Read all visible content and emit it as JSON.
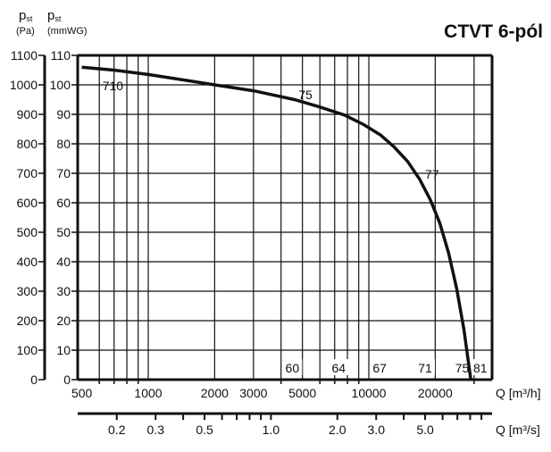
{
  "chart_data": {
    "type": "line",
    "title": "CTVT 6-pól",
    "y_left_label": {
      "main": "p",
      "sub": "st",
      "unit": "(Pa)"
    },
    "y_right_label": {
      "main": "p",
      "sub": "st",
      "unit": "(mmWG)"
    },
    "y_pa_ticks": [
      0,
      100,
      200,
      300,
      400,
      500,
      600,
      700,
      800,
      900,
      1000,
      1100
    ],
    "y_mmwg_ticks": [
      0,
      10,
      20,
      30,
      40,
      50,
      60,
      70,
      80,
      90,
      100,
      110
    ],
    "ylim_mmwg": [
      0,
      110
    ],
    "x_scale": "log",
    "xlim_m3h": [
      500,
      36000
    ],
    "x_m3h_ticks": [
      500,
      1000,
      2000,
      3000,
      5000,
      10000,
      20000
    ],
    "x_m3h_label": "Q [m³/h]",
    "x_m3s_ticks": [
      0.2,
      0.3,
      0.5,
      1.0,
      2.0,
      3.0,
      5.0
    ],
    "x_m3s_minor": [
      0.4,
      0.6,
      0.7,
      0.8,
      0.9,
      4.0,
      6.0,
      7.0,
      8.0,
      9.0
    ],
    "x_m3s_label": "Q [m³/s]",
    "grid": true,
    "series": [
      {
        "name": "CTVT 6-pól",
        "x": [
          500,
          700,
          1000,
          1500,
          2000,
          3000,
          4600,
          6000,
          7800,
          9500,
          11300,
          13000,
          15000,
          17000,
          19000,
          21000,
          23000,
          25000,
          27000,
          29000
        ],
        "y": [
          106,
          105,
          103.5,
          101.5,
          100,
          98,
          95,
          92.5,
          89.7,
          86.5,
          83,
          79,
          74,
          68,
          61,
          53,
          43,
          31,
          17,
          0
        ]
      }
    ],
    "annotations": [
      {
        "text": "710",
        "x": 620,
        "y": 100
      },
      {
        "text": "75",
        "x": 4800,
        "y": 97
      },
      {
        "text": "77",
        "x": 18000,
        "y": 70
      }
    ],
    "bottom_labels": [
      {
        "text": "60",
        "x": 4500
      },
      {
        "text": "64",
        "x": 7300
      },
      {
        "text": "67",
        "x": 11200
      },
      {
        "text": "71",
        "x": 18000
      },
      {
        "text": "75",
        "x": 26500
      },
      {
        "text": "81",
        "x": 32000
      }
    ]
  }
}
